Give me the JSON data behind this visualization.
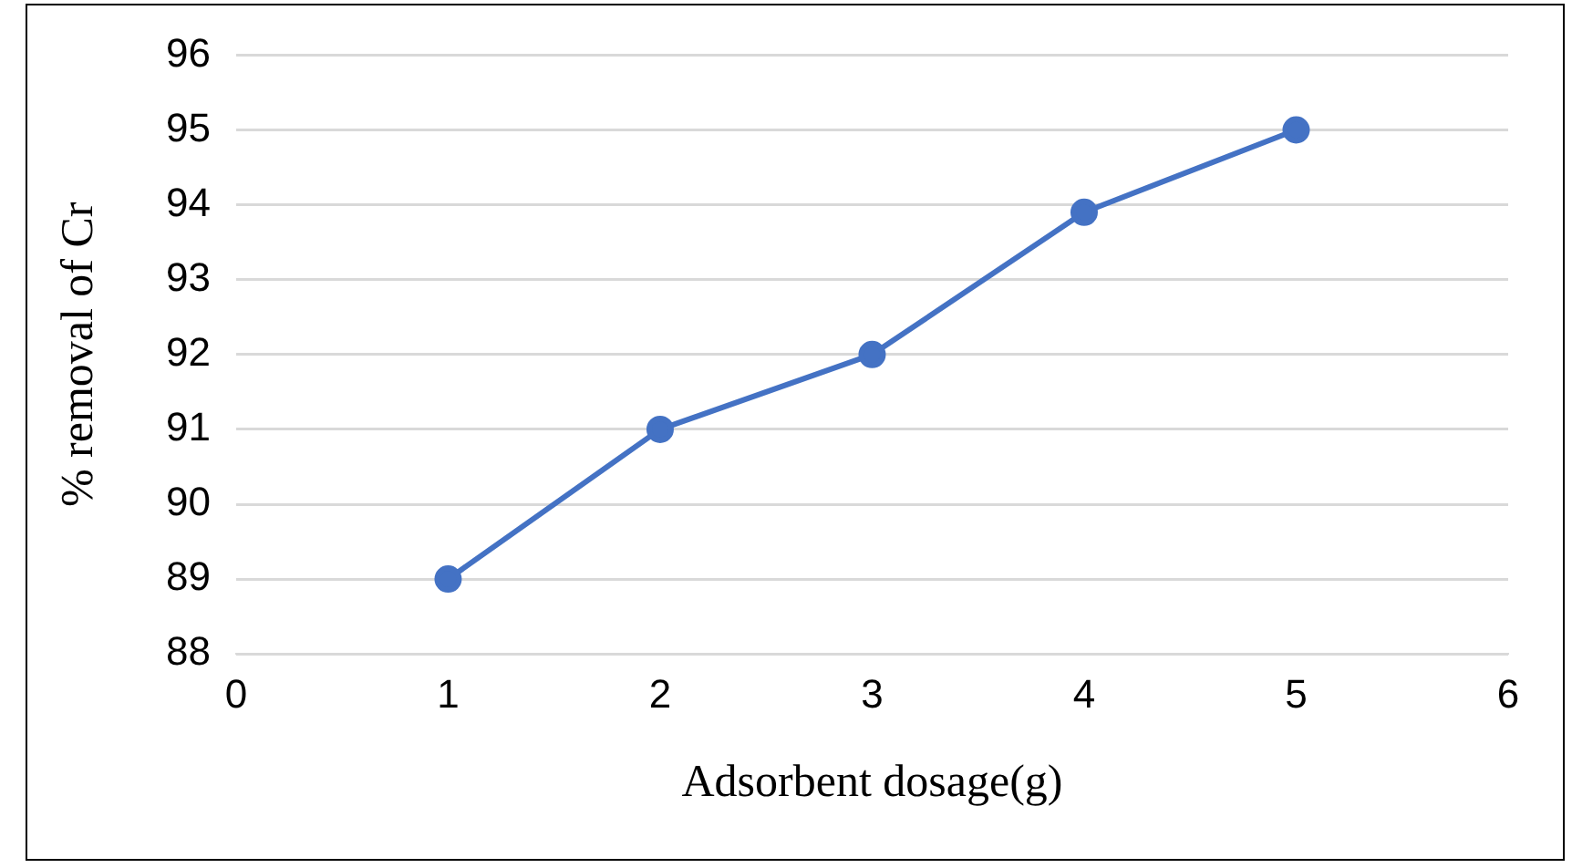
{
  "chart_data": {
    "type": "line",
    "xlabel": "Adsorbent dosage(g)",
    "ylabel": "% removal of Cr",
    "x": [
      1,
      2,
      3,
      4,
      5
    ],
    "series": [
      {
        "color": "#4472c4",
        "values": [
          89,
          91,
          92,
          93.9,
          95
        ]
      }
    ],
    "xlim": [
      0,
      6
    ],
    "xticks": [
      0,
      1,
      2,
      3,
      4,
      5,
      6
    ],
    "ylim": [
      88,
      96
    ],
    "yticks": [
      88,
      89,
      90,
      91,
      92,
      93,
      94,
      95,
      96
    ],
    "grid": "y",
    "marker": "circle",
    "line_style": "solid",
    "legend": false
  }
}
